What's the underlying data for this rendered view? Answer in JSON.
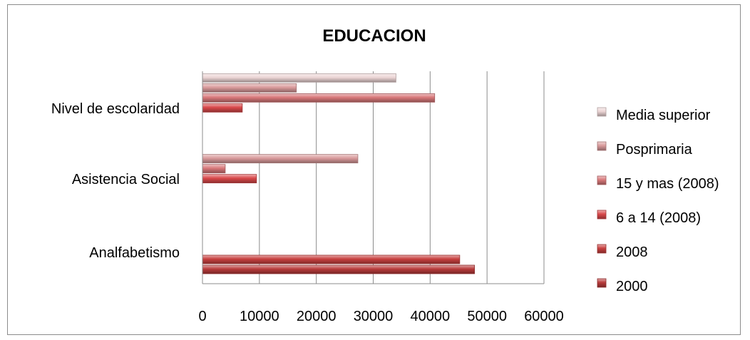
{
  "chart_data": {
    "type": "bar",
    "orientation": "horizontal",
    "title": "EDUCACION",
    "xlabel": "",
    "ylabel": "",
    "xlim": [
      0,
      60000
    ],
    "x_ticks": [
      "0",
      "10000",
      "20000",
      "30000",
      "40000",
      "50000",
      "60000"
    ],
    "categories": [
      "Analfabetismo",
      "Asistencia Social",
      "Nivel de escolaridad"
    ],
    "grid": "vertical",
    "legend_position": "right",
    "series": [
      {
        "name": "2000",
        "color": "#b83a3a",
        "values": [
          47800,
          null,
          null
        ]
      },
      {
        "name": "2008",
        "color": "#c8403f",
        "values": [
          45200,
          null,
          null
        ]
      },
      {
        "name": "6 a 14 (2008)",
        "color": "#d9484a",
        "values": [
          null,
          9500,
          7000
        ]
      },
      {
        "name": "15 y mas (2008)",
        "color": "#d8787a",
        "values": [
          null,
          4000,
          40800
        ]
      },
      {
        "name": "Posprimaria",
        "color": "#d99a9b",
        "values": [
          null,
          27300,
          16500
        ]
      },
      {
        "name": "Media superior",
        "color": "#ecd5d5",
        "values": [
          null,
          null,
          34000
        ]
      }
    ]
  }
}
